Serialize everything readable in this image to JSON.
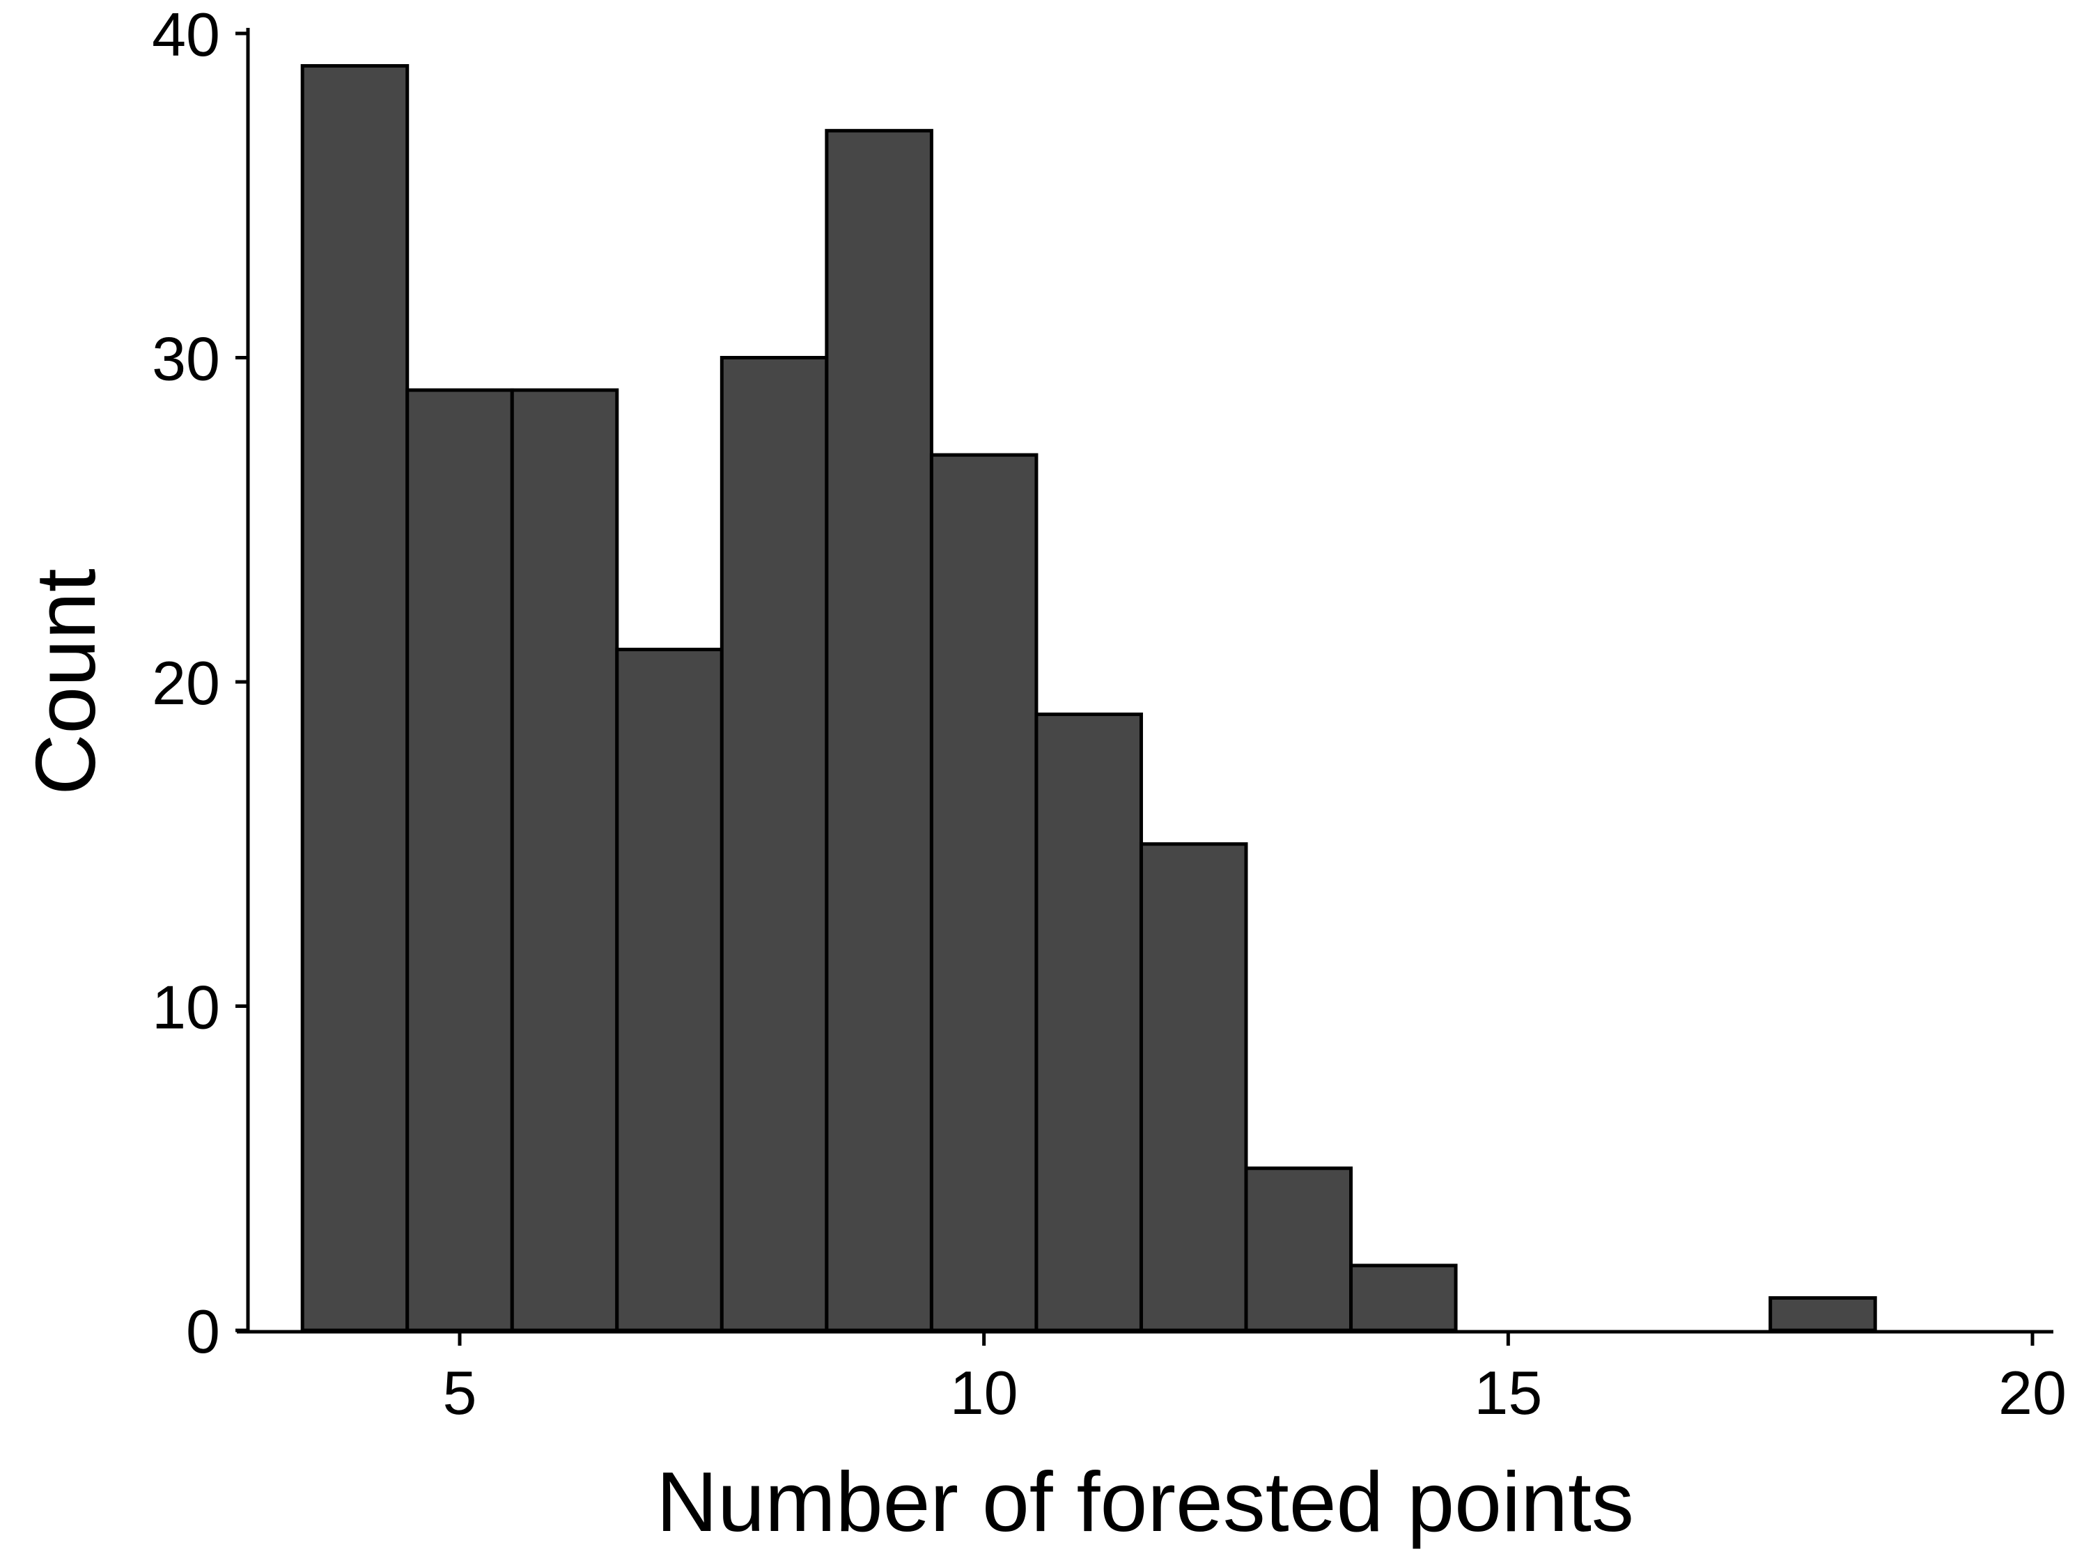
{
  "chart_data": {
    "type": "bar",
    "title": "",
    "xlabel": "Number of forested points",
    "ylabel": "Count",
    "x": [
      4,
      5,
      6,
      7,
      8,
      9,
      10,
      11,
      12,
      13,
      14,
      15,
      16,
      17,
      18,
      19
    ],
    "values": [
      39,
      29,
      29,
      21,
      30,
      37,
      27,
      19,
      15,
      5,
      2,
      0,
      0,
      0,
      1,
      0
    ],
    "bin_width": 1,
    "xlim": [
      1,
      20
    ],
    "ylim": [
      0,
      40
    ],
    "xticks": [
      5,
      10,
      15,
      20
    ],
    "yticks": [
      0,
      10,
      20,
      30,
      40
    ],
    "grid": false,
    "legend": "none",
    "colors": {
      "bar_fill": "#474747",
      "bar_stroke": "#000000",
      "axis": "#000000"
    }
  }
}
